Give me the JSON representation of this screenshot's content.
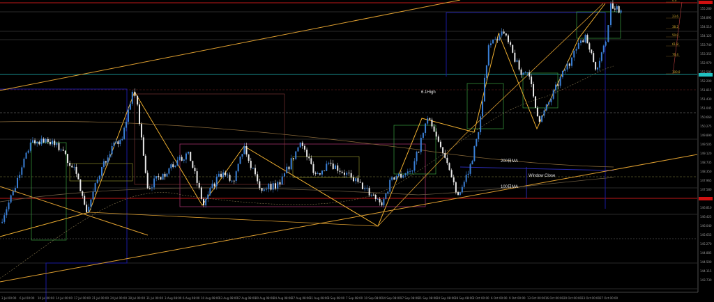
{
  "chart_data": {
    "type": "candlestick",
    "title": "",
    "colors": {
      "background": "#000000",
      "up_candle": "#3a7fd5",
      "down_candle": "#e8e8e8",
      "trendline": "#e0a030",
      "box_green": "#3aa040",
      "box_magenta": "#a0306a",
      "level_red": "#c01818",
      "level_cyan": "#20c0c0",
      "ma_200": "#8a6a3a",
      "ma_100": "#6a5a40"
    },
    "pivots": [
      [
        "2024-07-03",
        146.16
      ],
      [
        "2024-07-06",
        147.64
      ],
      [
        "2024-07-09",
        149.57
      ],
      [
        "2024-07-12",
        149.72
      ],
      [
        "2024-07-15",
        149.27
      ],
      [
        "2024-07-18",
        148.24
      ],
      [
        "2024-07-20",
        146.61
      ],
      [
        "2024-07-23",
        148.53
      ],
      [
        "2024-07-25",
        149.42
      ],
      [
        "2024-07-27",
        149.72
      ],
      [
        "2024-07-29",
        151.73
      ],
      [
        "2024-07-30",
        151.19
      ],
      [
        "2024-08-01",
        147.64
      ],
      [
        "2024-08-04",
        148.24
      ],
      [
        "2024-08-06",
        148.53
      ],
      [
        "2024-08-09",
        149.18
      ],
      [
        "2024-08-12",
        146.9
      ],
      [
        "2024-08-15",
        148.24
      ],
      [
        "2024-08-18",
        147.94
      ],
      [
        "2024-08-20",
        149.42
      ],
      [
        "2024-08-23",
        147.64
      ],
      [
        "2024-08-27",
        147.79
      ],
      [
        "2024-08-31",
        149.57
      ],
      [
        "2024-09-03",
        148.24
      ],
      [
        "2024-09-06",
        148.68
      ],
      [
        "2024-09-10",
        148.09
      ],
      [
        "2024-09-14",
        147.35
      ],
      [
        "2024-09-16",
        146.9
      ],
      [
        "2024-09-18",
        148.09
      ],
      [
        "2024-09-22",
        148.38
      ],
      [
        "2024-09-25",
        150.6
      ],
      [
        "2024-09-28",
        149.12
      ],
      [
        "2024-10-01",
        147.35
      ],
      [
        "2024-10-03",
        148.24
      ],
      [
        "2024-10-05",
        150.01
      ],
      [
        "2024-10-07",
        153.71
      ],
      [
        "2024-10-10",
        154.21
      ],
      [
        "2024-10-13",
        152.68
      ],
      [
        "2024-10-15",
        152.38
      ],
      [
        "2024-10-17",
        150.46
      ],
      [
        "2024-10-22",
        152.68
      ],
      [
        "2024-10-26",
        154.15
      ],
      [
        "2024-10-28",
        152.68
      ],
      [
        "2024-10-30",
        153.86
      ],
      [
        "2024-10-31",
        155.49
      ],
      [
        "2024-11-02",
        155.19
      ]
    ],
    "price_ticks": [
      "155.280",
      "154.895",
      "154.510",
      "154.125",
      "153.740",
      "153.355",
      "152.970",
      "152.585",
      "152.200",
      "151.815",
      "151.430",
      "151.045",
      "150.660",
      "150.275",
      "149.890",
      "149.505",
      "149.120",
      "148.735",
      "148.350",
      "147.965",
      "147.580",
      "147.195",
      "146.810",
      "146.425",
      "146.040",
      "145.655",
      "145.270",
      "144.885",
      "144.500",
      "144.115",
      "143.730"
    ],
    "time_ticks": [
      "3 Jul 00:00",
      "6 Jul 00:00",
      "10 Jul 00:00",
      "14 Jul 00:00",
      "17 Jul 00:00",
      "21 Jul 00:00",
      "24 Jul 00:00",
      "28 Jul 00:00",
      "31 Jul 00:00",
      "3 Aug 08:00",
      "6 Aug 08:00",
      "10 Aug 08:00",
      "13 Aug 08:00",
      "17 Aug 08:00",
      "20 Aug 08:00",
      "24 Aug 08:00",
      "27 Aug 08:00",
      "31 Aug 08:00",
      "3 Sep 08:00",
      "7 Sep 08:00",
      "10 Sep 08:00",
      "14 Sep 08:00",
      "17 Sep 08:00",
      "21 Sep 08:00",
      "24 Sep 08:00",
      "28 Sep 08:00",
      "2 Oct 00:00",
      "6 Oct 00:00",
      "9 Oct 00:00",
      "13 Oct 00:00",
      "16 Oct 00:00",
      "20 Oct 00:00",
      "23 Oct 00:00",
      "27 Oct 00:00"
    ],
    "fib_levels": [
      "0.0",
      "23.6",
      "38.2",
      "50.0",
      "61.8",
      "76.4",
      "100.0"
    ],
    "annotations": {
      "high_label": "6.1High",
      "ma200_label": "200日MA",
      "window_close_label": "Window Close",
      "ma100_label": "100日MA"
    },
    "grid": false
  }
}
